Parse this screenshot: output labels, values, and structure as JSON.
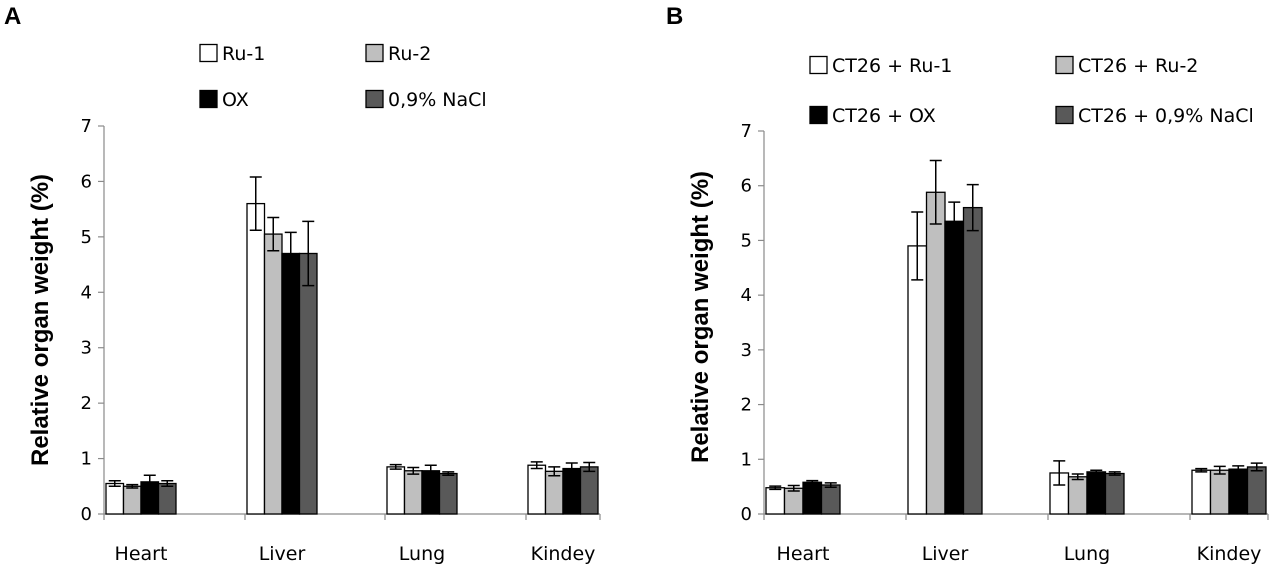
{
  "chart_data": [
    {
      "panel": "A",
      "type": "bar",
      "ylabel": "Relative organ weight (%)",
      "xlabel": "",
      "ylim": [
        0,
        7
      ],
      "yticks": [
        0,
        1,
        2,
        3,
        4,
        5,
        6,
        7
      ],
      "categories": [
        "Heart",
        "Liver",
        "Lung",
        "Kindey"
      ],
      "grid": false,
      "legend": "top",
      "series": [
        {
          "name": "Ru-1",
          "color": "#ffffff",
          "values": [
            0.55,
            5.6,
            0.85,
            0.88
          ],
          "errors": [
            0.05,
            0.48,
            0.04,
            0.06
          ]
        },
        {
          "name": "Ru-2",
          "color": "#bfbfbf",
          "values": [
            0.5,
            5.05,
            0.78,
            0.77
          ],
          "errors": [
            0.03,
            0.3,
            0.06,
            0.08
          ]
        },
        {
          "name": "OX",
          "color": "#000000",
          "values": [
            0.58,
            4.7,
            0.78,
            0.82
          ],
          "errors": [
            0.12,
            0.38,
            0.1,
            0.1
          ]
        },
        {
          "name": "0,9% NaCl",
          "color": "#595959",
          "values": [
            0.55,
            4.7,
            0.73,
            0.85
          ],
          "errors": [
            0.05,
            0.58,
            0.03,
            0.08
          ]
        }
      ]
    },
    {
      "panel": "B",
      "type": "bar",
      "ylabel": "Relative organ weight (%)",
      "xlabel": "",
      "ylim": [
        0,
        7
      ],
      "yticks": [
        0,
        1,
        2,
        3,
        4,
        5,
        6,
        7
      ],
      "categories": [
        "Heart",
        "Liver",
        "Lung",
        "Kindey"
      ],
      "grid": false,
      "legend": "top",
      "series": [
        {
          "name": "CT26 + Ru-1",
          "color": "#ffffff",
          "values": [
            0.48,
            4.9,
            0.75,
            0.8
          ],
          "errors": [
            0.03,
            0.62,
            0.22,
            0.03
          ]
        },
        {
          "name": "CT26 + Ru-2",
          "color": "#bfbfbf",
          "values": [
            0.47,
            5.88,
            0.68,
            0.8
          ],
          "errors": [
            0.05,
            0.58,
            0.05,
            0.07
          ]
        },
        {
          "name": "CT26 + OX",
          "color": "#000000",
          "values": [
            0.58,
            5.35,
            0.77,
            0.82
          ],
          "errors": [
            0.03,
            0.35,
            0.03,
            0.06
          ]
        },
        {
          "name": "CT26 + 0,9% NaCl",
          "color": "#595959",
          "values": [
            0.53,
            5.6,
            0.74,
            0.86
          ],
          "errors": [
            0.04,
            0.42,
            0.03,
            0.07
          ]
        }
      ]
    }
  ]
}
